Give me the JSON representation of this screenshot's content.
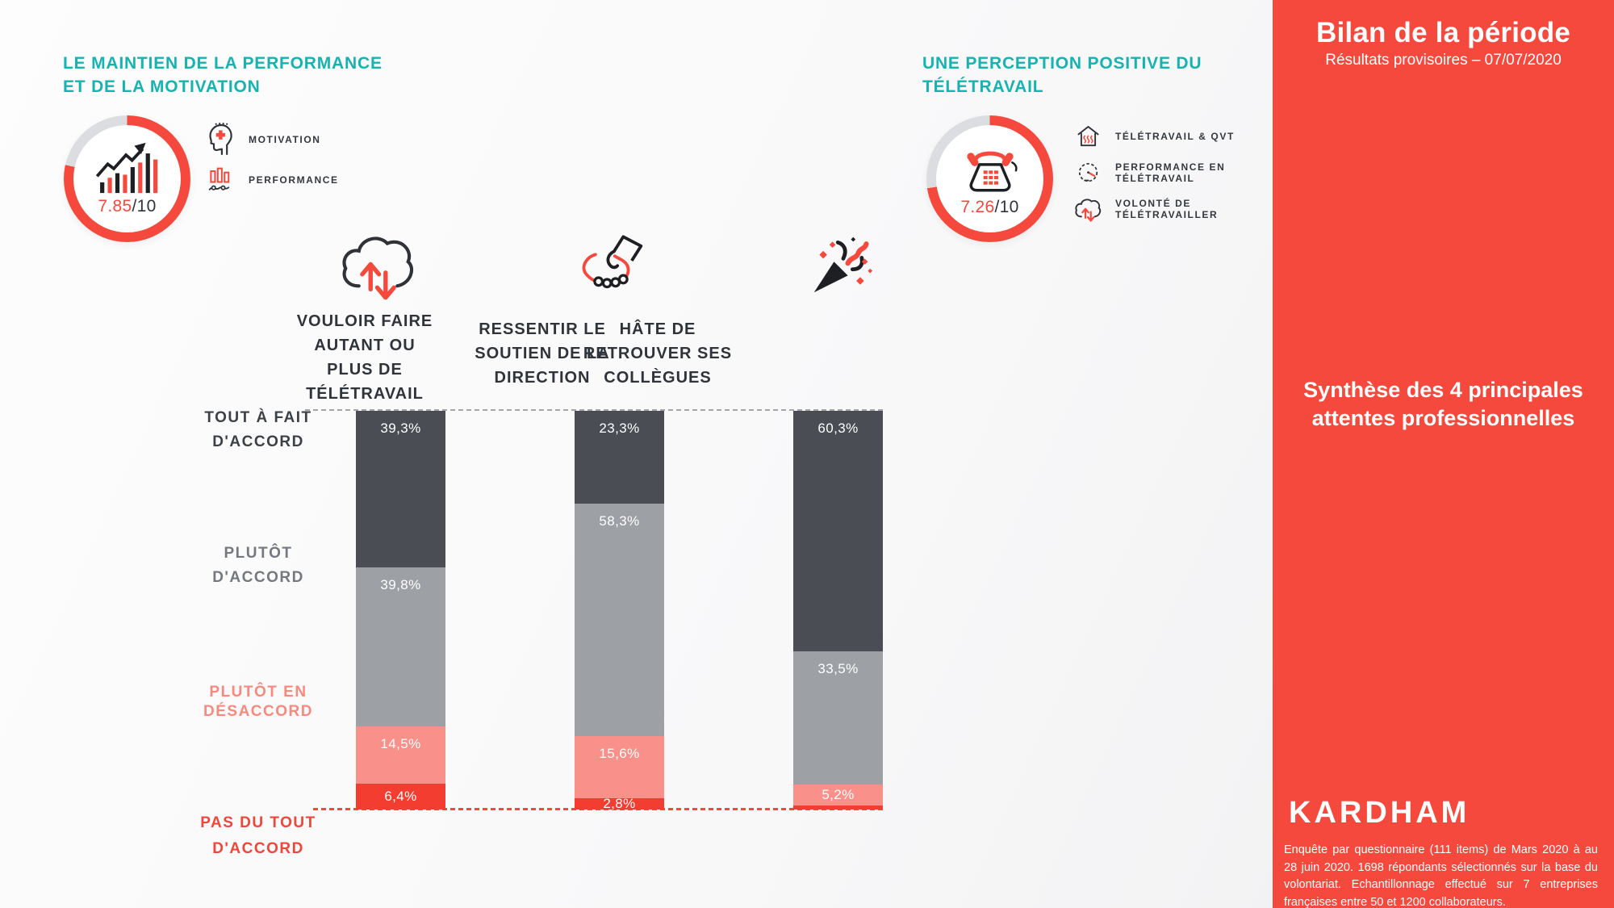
{
  "left_panel": {
    "title_line1": "LE MAINTIEN DE LA PERFORMANCE",
    "title_line2": "ET DE LA MOTIVATION",
    "score_value": "7.85",
    "score_suffix": "/10",
    "legend": [
      {
        "icon": "motivation-icon",
        "label": "MOTIVATION"
      },
      {
        "icon": "performance-icon",
        "label": "PERFORMANCE"
      }
    ]
  },
  "right_panel": {
    "title_line1": "UNE PERCEPTION POSITIVE DU",
    "title_line2": "TÉLÉTRAVAIL",
    "score_value": "7.26",
    "score_suffix": "/10",
    "legend": [
      {
        "icon": "house-heat-icon",
        "line1": "TÉLÉTRAVAIL & QVT",
        "line2": ""
      },
      {
        "icon": "speedometer-icon",
        "line1": "PERFORMANCE EN",
        "line2": "TÉLÉTRAVAIL"
      },
      {
        "icon": "cloud-arrows-icon",
        "line1": "VOLONTÉ DE",
        "line2": "TÉLÉTRAVAILLER"
      }
    ]
  },
  "chart_data": {
    "type": "bar",
    "stacked": true,
    "unit": "%",
    "ylim": [
      0,
      100
    ],
    "grid": false,
    "legend_position": "left",
    "value_text_color": "#ffffff",
    "categories": [
      {
        "label": "VOULOIR FAIRE AUTANT OU PLUS DE TÉLÉTRAVAIL",
        "lines": [
          "VOULOIR FAIRE",
          "AUTANT OU",
          "PLUS DE",
          "TÉLÉTRAVAIL"
        ],
        "icon": "cloud-arrows-icon"
      },
      {
        "label": "RESSENTIR LE SOUTIEN DE LA DIRECTION",
        "lines": [
          "RESSENTIR LE",
          "SOUTIEN DE LA",
          "DIRECTION"
        ],
        "icon": "handshake-icon"
      },
      {
        "label": "HÂTE DE RETROUVER SES COLLÈGUES",
        "lines": [
          "HÂTE DE",
          "RETROUVER SES",
          "COLLÈGUES"
        ],
        "icon": "party-popper-icon"
      }
    ],
    "series": [
      {
        "name": "TOUT À FAIT D'ACCORD",
        "name_lines": [
          "TOUT À FAIT",
          "D'ACCORD"
        ],
        "color": "#4a4e54",
        "label_color": "#3c4147",
        "values": [
          39.3,
          23.3,
          60.3
        ],
        "value_labels": [
          "39,3%",
          "23,3%",
          "60,3%"
        ]
      },
      {
        "name": "PLUTÔT D'ACCORD",
        "name_lines": [
          "PLUTÔT",
          "D'ACCORD"
        ],
        "color": "#9da0a4",
        "label_color": "#74797f",
        "values": [
          39.8,
          58.3,
          33.5
        ],
        "value_labels": [
          "39,8%",
          "58,3%",
          "33,5%"
        ]
      },
      {
        "name": "PLUTÔT EN DÉSACCORD",
        "name_lines": [
          "PLUTÔT EN",
          "DÉSACCORD"
        ],
        "color": "#f9908a",
        "label_color": "#f8897f",
        "values": [
          14.5,
          15.6,
          5.2
        ],
        "value_labels": [
          "14,5%",
          "15,6%",
          "5,2%"
        ]
      },
      {
        "name": "PAS DU TOUT D'ACCORD",
        "name_lines": [
          "PAS DU TOUT",
          "D'ACCORD"
        ],
        "color": "#f43d31",
        "label_color": "#f0453a",
        "values": [
          6.4,
          2.8,
          1.0
        ],
        "value_labels": [
          "6,4%",
          "2,8%",
          ""
        ]
      }
    ]
  },
  "sidebar": {
    "background": "#f4493c",
    "title": "Bilan de la période",
    "subtitle": "Résultats provisoires – 07/07/2020",
    "highlight_line1": "Synthèse des 4 principales",
    "highlight_line2": "attentes professionnelles",
    "logo": "KARDHAM",
    "footnote": "Enquête par questionnaire (111 items) de Mars 2020 à au 28 juin 2020. 1698 répondants sélectionnés sur la base du volontariat. Echantillonnage effectué sur 7 entreprises françaises entre 50 et 1200 collaborateurs."
  },
  "colors": {
    "accent_red": "#f4493c",
    "teal": "#17b3b0",
    "bar_dark": "#4a4e54",
    "bar_gray": "#9da0a4",
    "bar_salmon": "#f9908a",
    "bar_red": "#f43d31",
    "ring_rest": "#dcdde0"
  }
}
